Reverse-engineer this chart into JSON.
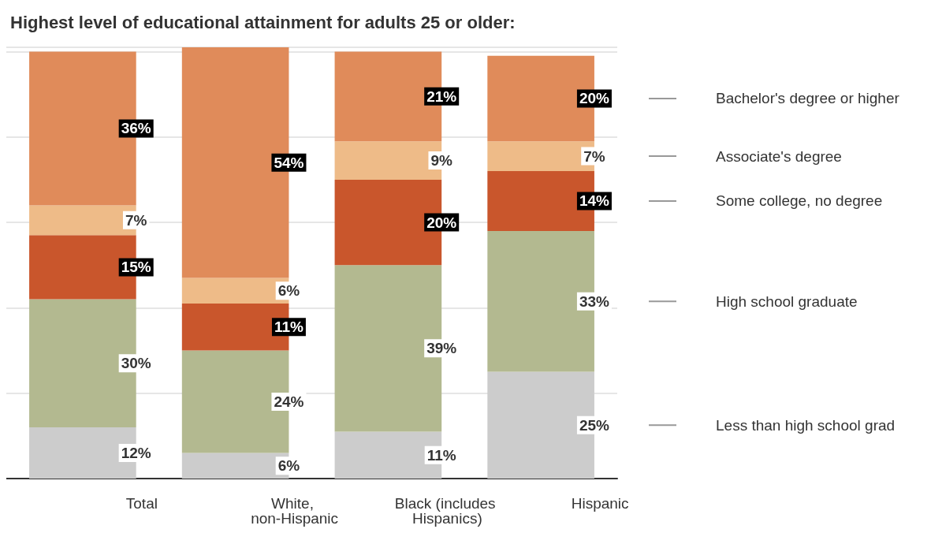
{
  "chart_data": {
    "type": "bar",
    "title": "Highest level of educational attainment for adults 25 or older:",
    "categories": [
      "Total",
      "White, non-Hispanic",
      "Black (includes Hispanics)",
      "Hispanic"
    ],
    "stacked": true,
    "tick_labels": "x",
    "grid": "y",
    "legend": "right",
    "series": [
      {
        "name": "Less than high school grad",
        "color": "#cccccc",
        "values": [
          12,
          6,
          11,
          25
        ],
        "value_labels": [
          "12%",
          "6%",
          "11%",
          "25%"
        ]
      },
      {
        "name": "High school graduate",
        "color": "#b3b990",
        "values": [
          30,
          24,
          39,
          33
        ],
        "value_labels": [
          "30%",
          "24%",
          "39%",
          "33%"
        ]
      },
      {
        "name": "Some college, no degree",
        "color": "#c9562c",
        "values": [
          15,
          11,
          20,
          14
        ],
        "value_labels": [
          "15%",
          "11%",
          "20%",
          "14%"
        ]
      },
      {
        "name": "Associate's degree",
        "color": "#eebb88",
        "values": [
          7,
          6,
          9,
          7
        ],
        "value_labels": [
          "7%",
          "6%",
          "9%",
          "7%"
        ]
      },
      {
        "name": "Bachelor's degree or higher",
        "color": "#e08b5a",
        "values": [
          36,
          54,
          21,
          20
        ],
        "value_labels": [
          "36%",
          "54%",
          "21%",
          "20%"
        ]
      }
    ]
  }
}
